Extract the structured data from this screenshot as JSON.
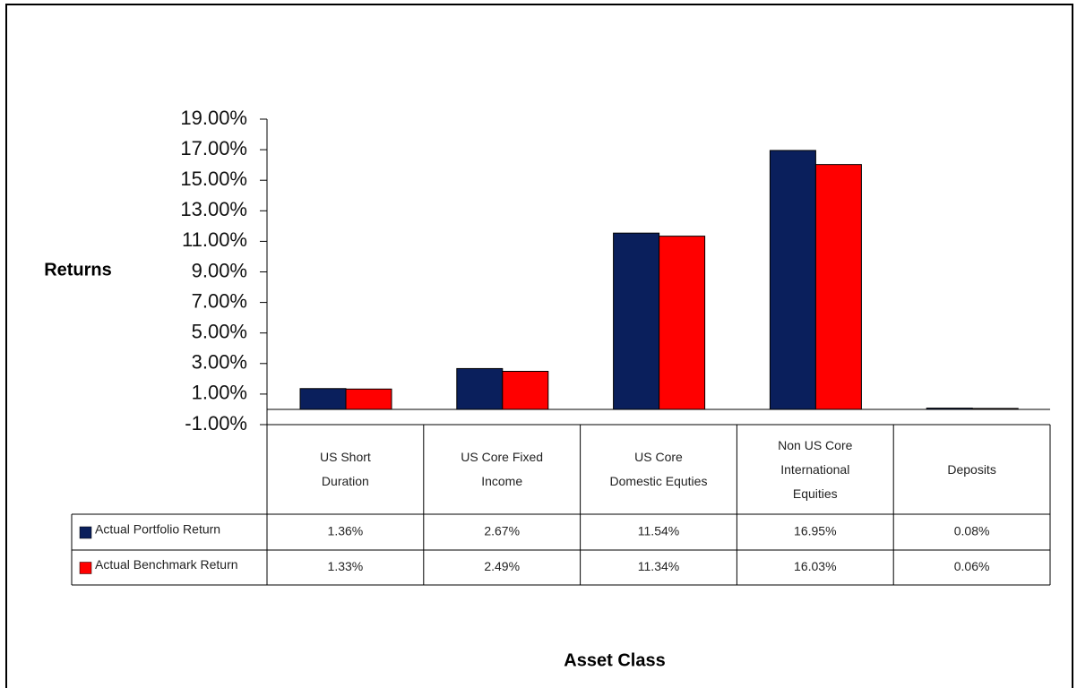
{
  "chart_data": {
    "type": "bar",
    "y_label": "Returns",
    "x_label": "Asset Class",
    "categories": [
      "US Short Duration",
      "US Core Fixed Income",
      "US Core Domestic Equties",
      "Non US Core International Equities",
      "Deposits"
    ],
    "series": [
      {
        "name": "Actual Portfolio Return",
        "color": "#0a1f5c",
        "values": [
          1.36,
          2.67,
          11.54,
          16.95,
          0.08
        ],
        "value_labels": [
          "1.36%",
          "2.67%",
          "11.54%",
          "16.95%",
          "0.08%"
        ]
      },
      {
        "name": "Actual Benchmark Return",
        "color": "#ff0000",
        "values": [
          1.33,
          2.49,
          11.34,
          16.03,
          0.06
        ],
        "value_labels": [
          "1.33%",
          "2.49%",
          "11.34%",
          "16.03%",
          "0.06%"
        ]
      }
    ],
    "ylim": [
      -1,
      19
    ],
    "yticks": [
      {
        "value": -1,
        "label": "-1.00%"
      },
      {
        "value": 1,
        "label": "1.00%"
      },
      {
        "value": 3,
        "label": "3.00%"
      },
      {
        "value": 5,
        "label": "5.00%"
      },
      {
        "value": 7,
        "label": "7.00%"
      },
      {
        "value": 9,
        "label": "9.00%"
      },
      {
        "value": 11,
        "label": "11.00%"
      },
      {
        "value": 13,
        "label": "13.00%"
      },
      {
        "value": 15,
        "label": "15.00%"
      },
      {
        "value": 17,
        "label": "17.00%"
      },
      {
        "value": 19,
        "label": "19.00%"
      }
    ],
    "grid": false
  }
}
